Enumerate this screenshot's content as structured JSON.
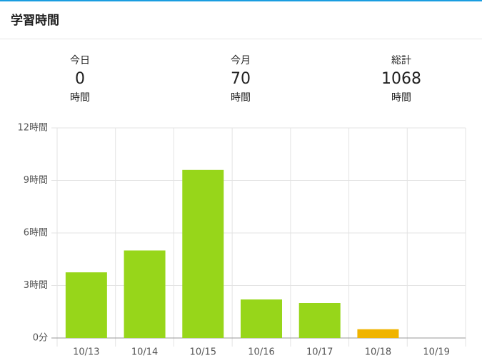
{
  "header": {
    "title": "学習時間"
  },
  "stats": [
    {
      "label": "今日",
      "value": 0,
      "unit": "時間"
    },
    {
      "label": "今月",
      "value": 70,
      "unit": "時間"
    },
    {
      "label": "総計",
      "value": 1068,
      "unit": "時間"
    }
  ],
  "chart_data": {
    "type": "bar",
    "categories": [
      "10/13",
      "10/14",
      "10/15",
      "10/16",
      "10/17",
      "10/18",
      "10/19"
    ],
    "values": [
      3.75,
      5.0,
      9.6,
      2.2,
      2.0,
      0.5,
      0
    ],
    "colors": [
      "#97d61a",
      "#97d61a",
      "#97d61a",
      "#97d61a",
      "#97d61a",
      "#f0b400",
      "#97d61a"
    ],
    "ylim": [
      0,
      12
    ],
    "yticks": [
      {
        "value": 0,
        "label": "0分"
      },
      {
        "value": 3,
        "label": "3時間"
      },
      {
        "value": 6,
        "label": "6時間"
      },
      {
        "value": 9,
        "label": "9時間"
      },
      {
        "value": 12,
        "label": "12時間"
      }
    ],
    "grid": true
  }
}
